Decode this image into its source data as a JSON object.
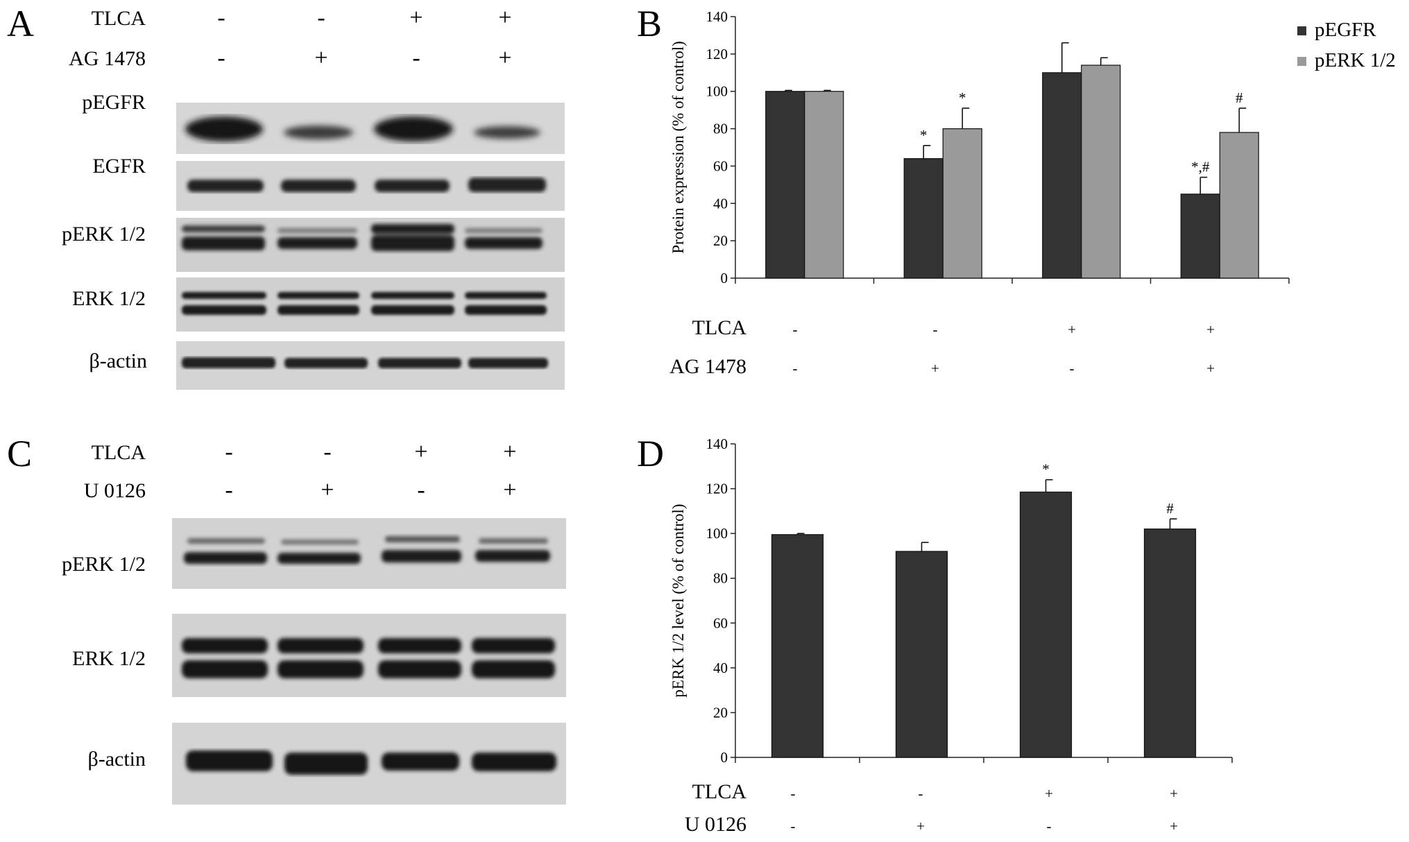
{
  "panels": {
    "A": {
      "letter": "A",
      "conditions": [
        {
          "label": "TLCA",
          "signs": [
            "-",
            "-",
            "+",
            "+"
          ]
        },
        {
          "label": "AG 1478",
          "signs": [
            "-",
            "+",
            "-",
            "+"
          ]
        }
      ],
      "blot_labels": [
        "pEGFR",
        "EGFR",
        "pERK 1/2",
        "ERK 1/2",
        "β-actin"
      ]
    },
    "B": {
      "letter": "B",
      "conditions": [
        {
          "label": "TLCA",
          "signs": [
            "-",
            "-",
            "+",
            "+"
          ]
        },
        {
          "label": "AG 1478",
          "signs": [
            "-",
            "+",
            "-",
            "+"
          ]
        }
      ]
    },
    "C": {
      "letter": "C",
      "conditions": [
        {
          "label": "TLCA",
          "signs": [
            "-",
            "-",
            "+",
            "+"
          ]
        },
        {
          "label": "U 0126",
          "signs": [
            "-",
            "+",
            "-",
            "+"
          ]
        }
      ],
      "blot_labels": [
        "pERK 1/2",
        "ERK 1/2",
        "β-actin"
      ]
    },
    "D": {
      "letter": "D",
      "conditions": [
        {
          "label": "TLCA",
          "signs": [
            "-",
            "-",
            "+",
            "+"
          ]
        },
        {
          "label": "U 0126",
          "signs": [
            "-",
            "+",
            "-",
            "+"
          ]
        }
      ]
    }
  },
  "chart_data": [
    {
      "panel": "B",
      "type": "bar",
      "ylabel": "Protein expression (%  of control)",
      "ylim": [
        0,
        140
      ],
      "yticks": [
        0,
        20,
        40,
        60,
        80,
        100,
        120,
        140
      ],
      "grid": false,
      "legend": "top-right",
      "categories": [
        "1",
        "2",
        "3",
        "4"
      ],
      "series": [
        {
          "name": "pEGFR",
          "color": "#333333",
          "values": [
            100,
            64,
            110,
            45
          ],
          "errors": [
            0.5,
            7,
            16,
            9
          ],
          "annotations": [
            "",
            "*",
            "",
            "*,#"
          ]
        },
        {
          "name": "pERK 1/2",
          "color": "#9a9a9a",
          "values": [
            100,
            80,
            114,
            78
          ],
          "errors": [
            0.5,
            11,
            4,
            13
          ],
          "annotations": [
            "",
            "*",
            "",
            "#"
          ]
        }
      ]
    },
    {
      "panel": "D",
      "type": "bar",
      "ylabel": "pERK 1/2 level (% of control)",
      "ylim": [
        0,
        140
      ],
      "yticks": [
        0,
        20,
        40,
        60,
        80,
        100,
        120,
        140
      ],
      "grid": false,
      "categories": [
        "1",
        "2",
        "3",
        "4"
      ],
      "series": [
        {
          "color": "#333333",
          "values": [
            99.5,
            92,
            118.5,
            102
          ],
          "errors": [
            0.5,
            4,
            5.5,
            4.5
          ],
          "annotations": [
            "",
            "",
            "*",
            "#"
          ]
        }
      ]
    }
  ]
}
